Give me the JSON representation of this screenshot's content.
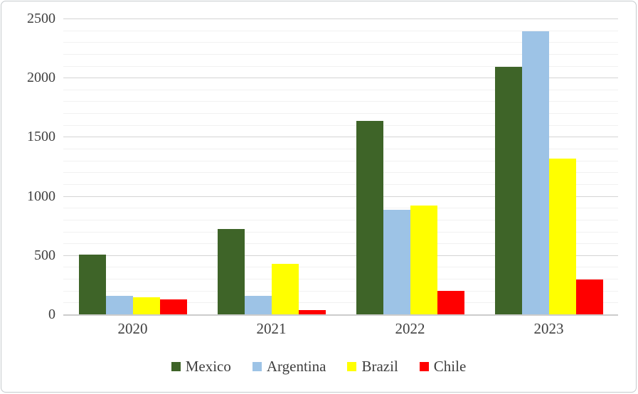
{
  "chart_data": {
    "type": "bar",
    "title": "",
    "xlabel": "",
    "ylabel": "",
    "categories": [
      "2020",
      "2021",
      "2022",
      "2023"
    ],
    "series": [
      {
        "name": "Mexico",
        "color": "#3e6428",
        "values": [
          510,
          730,
          1640,
          2100
        ]
      },
      {
        "name": "Argentina",
        "color": "#9dc3e6",
        "values": [
          165,
          160,
          890,
          2400
        ]
      },
      {
        "name": "Brazil",
        "color": "#ffff00",
        "values": [
          150,
          430,
          925,
          1320
        ]
      },
      {
        "name": "Chile",
        "color": "#ff0000",
        "values": [
          130,
          40,
          205,
          300
        ]
      }
    ],
    "ylim": [
      0,
      2500
    ],
    "y_major_ticks": [
      0,
      500,
      1000,
      1500,
      2000,
      2500
    ],
    "y_minor_step": 100,
    "grid": true,
    "legend_position": "bottom"
  },
  "style": {
    "text_color": "#3f3f3f",
    "major_gridline_color": "#d4d4d4",
    "minor_gridline_color": "#f1f1f1",
    "axis_line_color": "#cccccc",
    "frame_border_color": "#c6cacd",
    "background_color": "#ffffff"
  }
}
